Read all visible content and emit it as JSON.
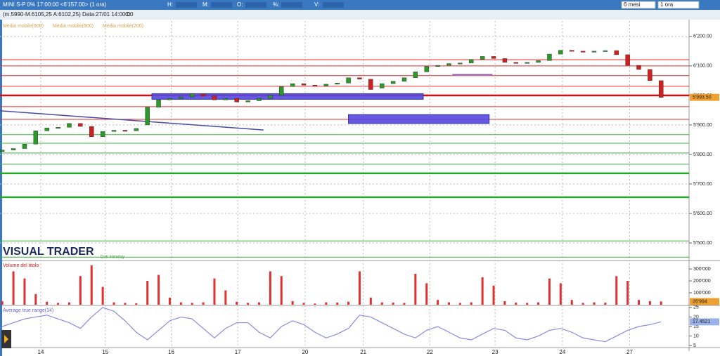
{
  "toolbar": {
    "title": "MINI S-P 0% 17:00:00 <6'157.00> (1 ora)",
    "fields": [
      "H:",
      "M:",
      "O:",
      "%:",
      "V:"
    ],
    "period": "6 mesi",
    "interval": "1 ora",
    "info": "(m.5990-M.6105,25 A:6102,25) Data:27/01 14:00:00",
    "info_field": "C:",
    "logo": "VISUAL TRADER",
    "logo_sub": "Dati Intraday"
  },
  "chart_data": [
    {
      "type": "candlestick",
      "legend": [
        "Media mobile(600)",
        "Media mobile(600)",
        "Media mobile(200)"
      ],
      "up_color": "#2a9a2a",
      "down_color": "#d02020",
      "grid": true,
      "open": [
        5810,
        5815,
        5820,
        5835,
        5880,
        5890,
        5892,
        5905,
        5895,
        5860,
        5878,
        5882,
        5880,
        5900,
        5960,
        5985,
        5990,
        5995,
        6005,
        5998,
        5985,
        5990,
        5978,
        5982,
        5990,
        6000,
        6030,
        6040,
        6035,
        6032,
        6038,
        6042,
        6060,
        6055,
        6025,
        6040,
        6048,
        6060,
        6080,
        6098,
        6102,
        6108,
        6110,
        6122,
        6132,
        6125,
        6112,
        6110,
        6112,
        6118,
        6140,
        6153,
        6150,
        6148,
        6150,
        6152,
        6138,
        6102,
        6088,
        6050
      ],
      "close": [
        5815,
        5820,
        5835,
        5880,
        5890,
        5892,
        5905,
        5895,
        5860,
        5878,
        5882,
        5880,
        5888,
        5960,
        5985,
        5990,
        5995,
        6005,
        5998,
        5985,
        5990,
        5978,
        5982,
        5990,
        6000,
        6030,
        6040,
        6035,
        6032,
        6038,
        6042,
        6060,
        6055,
        6020,
        6040,
        6048,
        6060,
        6080,
        6098,
        6102,
        6108,
        6110,
        6122,
        6132,
        6125,
        6112,
        6110,
        6112,
        6118,
        6140,
        6153,
        6150,
        6148,
        6150,
        6152,
        6138,
        6102,
        6088,
        6050,
        5993.5
      ],
      "last_price": {
        "value": 5993.5,
        "label": "5'993.50"
      },
      "xlim": [
        -0.2,
        61.5
      ],
      "xticks": [
        {
          "value": 3.45,
          "label": "14"
        },
        {
          "value": 9.23,
          "label": "15"
        },
        {
          "value": 15.13,
          "label": "16"
        },
        {
          "value": 21.09,
          "label": "17"
        },
        {
          "value": 27.12,
          "label": "20"
        },
        {
          "value": 32.33,
          "label": "21"
        },
        {
          "value": 38.29,
          "label": "22"
        },
        {
          "value": 44.13,
          "label": "23"
        },
        {
          "value": 50.16,
          "label": "24"
        },
        {
          "value": 56.18,
          "label": "27"
        }
      ],
      "ylim": [
        5443,
        6252
      ],
      "yticks": [
        {
          "value": 6200,
          "label": "6'200.00"
        },
        {
          "value": 6100,
          "label": "6'100.00"
        },
        {
          "value": 6000,
          "label": "6'000.00"
        },
        {
          "value": 5900,
          "label": "5'900.00"
        },
        {
          "value": 5800,
          "label": "5'800.00"
        },
        {
          "value": 5700,
          "label": "5'700.00"
        },
        {
          "value": 5600,
          "label": "5'600.00"
        },
        {
          "value": 5500,
          "label": "5'500.00"
        }
      ],
      "levels": [
        {
          "value": 6121,
          "color": "#e03030"
        },
        {
          "value": 6100,
          "color": "#e03030"
        },
        {
          "value": 6067,
          "color": "#e03030"
        },
        {
          "value": 6031,
          "color": "#e03030"
        },
        {
          "value": 6000,
          "color": "#d01010",
          "strong": true
        },
        {
          "value": 5962,
          "color": "#e03030"
        },
        {
          "value": 5919,
          "color": "#e03030"
        },
        {
          "value": 5867,
          "color": "#3cb83c"
        },
        {
          "value": 5838,
          "color": "#3cb83c"
        },
        {
          "value": 5805,
          "color": "#3cb83c"
        },
        {
          "value": 5767,
          "color": "#3cb83c"
        },
        {
          "value": 5736,
          "color": "#20a820",
          "strong": true
        },
        {
          "value": 5655,
          "color": "#20a820",
          "strong": true
        },
        {
          "value": 5507,
          "color": "#3cb83c"
        },
        {
          "value": 5452,
          "color": "#3cb83c"
        }
      ],
      "zones": [
        {
          "x": [
            13.4,
            37.7
          ],
          "y": [
            5987,
            6006
          ],
          "color": "#5548e0"
        },
        {
          "x": [
            31.0,
            43.6
          ],
          "y": [
            5905,
            5935
          ],
          "color": "#5548e0"
        }
      ],
      "trendlines": [
        {
          "x": [
            -0.2,
            23.4
          ],
          "y": [
            5948,
            5883
          ],
          "color": "#4a4aa8"
        },
        {
          "x": [
            40.3,
            43.9
          ],
          "y": [
            6071,
            6071
          ],
          "color": "#6060e0"
        }
      ]
    },
    {
      "type": "bar",
      "title": "Volume del titolo",
      "color": "#e03030",
      "values": [
        30000,
        280000,
        220000,
        90000,
        25000,
        15000,
        20000,
        240000,
        330000,
        150000,
        20000,
        15000,
        12000,
        200000,
        250000,
        60000,
        20000,
        15000,
        20000,
        220000,
        120000,
        25000,
        15000,
        20000,
        280000,
        240000,
        30000,
        15000,
        10000,
        20000,
        18000,
        25000,
        280000,
        60000,
        20000,
        18000,
        15000,
        260000,
        180000,
        40000,
        20000,
        15000,
        20000,
        230000,
        160000,
        30000,
        18000,
        15000,
        20000,
        220000,
        180000,
        40000,
        15000,
        20000,
        18000,
        240000,
        200000,
        40000,
        30000,
        26994
      ],
      "last_label": "26'994",
      "ylim": [
        0,
        365000
      ],
      "yticks": [
        {
          "value": 300000,
          "label": "300'000"
        },
        {
          "value": 200000,
          "label": "200'000"
        },
        {
          "value": 100000,
          "label": "100'000"
        }
      ]
    },
    {
      "type": "line",
      "title": "Average true range(14)",
      "color": "#8a8ae0",
      "values": [
        15,
        17,
        19,
        20,
        21,
        19,
        17,
        14,
        20,
        25,
        23,
        18,
        12,
        8,
        13,
        18,
        20,
        19,
        14,
        9,
        14,
        17,
        17,
        12,
        9,
        15,
        18,
        16,
        12,
        9,
        11,
        14,
        21,
        20,
        17,
        14,
        11,
        9,
        13,
        15,
        12,
        9,
        8,
        11,
        14,
        13,
        9,
        8,
        10,
        13,
        14,
        12,
        9,
        8,
        7,
        10,
        13,
        15,
        16,
        17.4521
      ],
      "ylim": [
        4.3,
        25.7
      ],
      "yticks": [
        25,
        20,
        15,
        10,
        5
      ]
    }
  ]
}
